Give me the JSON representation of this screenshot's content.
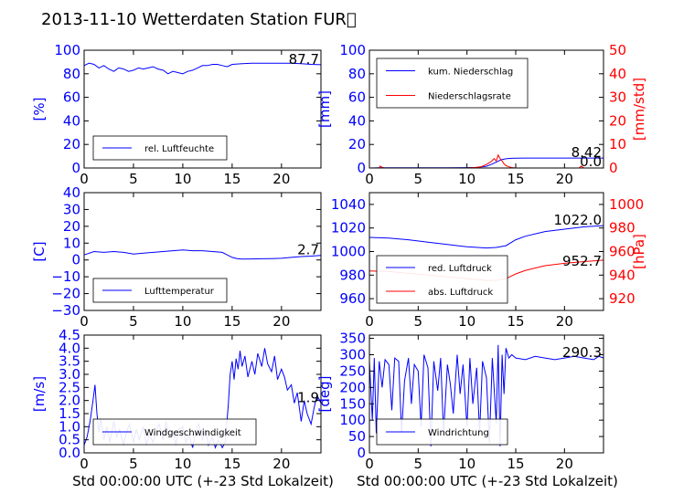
{
  "title": "2013-11-10 Wetterdaten Station FUR\u0000",
  "colors": {
    "primary": "#0000ff",
    "secondary": "#ff0000",
    "axis": "#000000"
  },
  "chart_data": [
    {
      "id": "humidity",
      "type": "line",
      "xlim": [
        0,
        24
      ],
      "xticks": [
        "0",
        "5",
        "10",
        "15",
        "20"
      ],
      "ylim": [
        0,
        100
      ],
      "yticks": [
        "0",
        "20",
        "40",
        "60",
        "80",
        "100"
      ],
      "ylabel": "[%]",
      "legend_position": "lower-left",
      "last_value_label": "87.7",
      "series": [
        {
          "name": "rel. Luftfeuchte",
          "color": "#0000ff",
          "x": [
            0,
            0.5,
            1,
            1.5,
            2,
            2.5,
            3,
            3.5,
            4,
            4.5,
            5,
            5.5,
            6,
            6.5,
            7,
            7.5,
            8,
            8.5,
            9,
            9.5,
            10,
            10.5,
            11,
            11.5,
            12,
            12.5,
            13,
            13.5,
            14,
            14.5,
            15,
            16,
            17,
            18,
            19,
            20,
            21,
            22,
            23,
            24
          ],
          "y": [
            87,
            89,
            88,
            85,
            87,
            84,
            82,
            85,
            84,
            82,
            83,
            85,
            84,
            85,
            86,
            84,
            83,
            80,
            82,
            81,
            80,
            82,
            83,
            85,
            87,
            87,
            88,
            88,
            87,
            86,
            88,
            88.5,
            89,
            89,
            89,
            89,
            89,
            88.5,
            88,
            87.7
          ]
        }
      ]
    },
    {
      "id": "precip",
      "type": "line",
      "xlim": [
        0,
        24
      ],
      "xticks": [
        "0",
        "5",
        "10",
        "15",
        "20"
      ],
      "ylim": [
        0,
        100
      ],
      "yticks": [
        "0",
        "20",
        "40",
        "60",
        "80",
        "100"
      ],
      "ylabel": "[mm]",
      "y2lim": [
        0,
        50
      ],
      "y2ticks": [
        "0",
        "10",
        "20",
        "30",
        "40",
        "50"
      ],
      "y2label": "[mm/std]",
      "legend_position": "upper-left",
      "last_value_label": "8.42",
      "last_value_label2": "0.0",
      "series": [
        {
          "name": "kum. Niederschlag",
          "color": "#0000ff",
          "axis": "left",
          "x": [
            0,
            1,
            2,
            4,
            6,
            8,
            10,
            11,
            12,
            12.5,
            13,
            13.5,
            14,
            14.5,
            15,
            16,
            18,
            20,
            22,
            24
          ],
          "y": [
            0,
            0.2,
            0.2,
            0.2,
            0.2,
            0.2,
            0.3,
            0.5,
            1.5,
            3,
            5,
            7,
            7.8,
            8.2,
            8.4,
            8.42,
            8.42,
            8.42,
            8.42,
            8.42
          ]
        },
        {
          "name": "Niederschlagsrate",
          "color": "#ff0000",
          "axis": "right",
          "x": [
            0,
            1,
            1.1,
            1.3,
            1.5,
            2,
            5,
            10,
            11,
            11.5,
            12,
            12.4,
            12.8,
            13,
            13.2,
            13.4,
            13.6,
            13.8,
            14,
            14.3,
            14.6,
            15,
            16,
            18,
            20,
            21.5,
            21.7,
            22,
            24
          ],
          "y": [
            0,
            0,
            0.8,
            0.3,
            0,
            0,
            0,
            0,
            0.3,
            0.6,
            1.5,
            2.5,
            4,
            3,
            5.5,
            4,
            3,
            1.8,
            1,
            0.5,
            0.2,
            0,
            0,
            0,
            0,
            0,
            0.8,
            0,
            0
          ]
        }
      ]
    },
    {
      "id": "temperature",
      "type": "line",
      "xlim": [
        0,
        24
      ],
      "xticks": [
        "0",
        "5",
        "10",
        "15",
        "20"
      ],
      "ylim": [
        -30,
        40
      ],
      "yticks": [
        "−30",
        "−20",
        "−10",
        "0",
        "10",
        "20",
        "30",
        "40"
      ],
      "ytick_values": [
        -30,
        -20,
        -10,
        0,
        10,
        20,
        30,
        40
      ],
      "ylabel": "[C]",
      "legend_position": "lower-left",
      "last_value_label": "2.7",
      "series": [
        {
          "name": "Lufttemperatur",
          "color": "#0000ff",
          "x": [
            0,
            1,
            2,
            3,
            4,
            5,
            6,
            7,
            8,
            9,
            10,
            11,
            12,
            13,
            14,
            14.5,
            15,
            15.5,
            16,
            17,
            18,
            19,
            20,
            21,
            22,
            23,
            24
          ],
          "y": [
            3,
            5,
            4.5,
            5,
            4.5,
            3.5,
            4,
            4.5,
            5,
            5.5,
            6,
            5.5,
            5.5,
            5,
            4.5,
            3,
            1.5,
            0.8,
            0.5,
            0.6,
            0.7,
            0.8,
            1,
            1.5,
            2,
            2.3,
            2.7
          ]
        }
      ]
    },
    {
      "id": "pressure",
      "type": "line",
      "xlim": [
        0,
        24
      ],
      "xticks": [
        "0",
        "5",
        "10",
        "15",
        "20"
      ],
      "ylim": [
        950,
        1050
      ],
      "yticks": [
        "960",
        "980",
        "1000",
        "1020",
        "1040"
      ],
      "ytick_values": [
        960,
        980,
        1000,
        1020,
        1040
      ],
      "y2lim": [
        910,
        1010
      ],
      "y2ticks": [
        "920",
        "940",
        "960",
        "980",
        "1000"
      ],
      "y2tick_values": [
        920,
        940,
        960,
        980,
        1000
      ],
      "y2label": "[hPa]",
      "legend_position": "lower-left",
      "last_value_label": "1022.0",
      "last_value_label2": "952.7",
      "series": [
        {
          "name": "red. Luftdruck",
          "color": "#0000ff",
          "axis": "left",
          "x": [
            0,
            2,
            4,
            6,
            8,
            10,
            12,
            13,
            14,
            15,
            16,
            18,
            20,
            22,
            24
          ],
          "y": [
            1012,
            1011.5,
            1010,
            1008,
            1006,
            1004,
            1003,
            1003.5,
            1005,
            1010,
            1013,
            1017,
            1019,
            1021,
            1022
          ]
        },
        {
          "name": "abs. Luftdruck",
          "color": "#ff0000",
          "axis": "right",
          "x": [
            0,
            2,
            4,
            6,
            8,
            10,
            12,
            13,
            14,
            15,
            16,
            18,
            20,
            22,
            24
          ],
          "y": [
            943.5,
            943,
            941.5,
            940,
            938.5,
            937,
            935.5,
            935.5,
            937,
            941,
            944,
            948,
            950,
            951.5,
            952.7
          ]
        }
      ]
    },
    {
      "id": "wind_speed",
      "type": "line",
      "xlim": [
        0,
        24
      ],
      "xticks": [
        "0",
        "5",
        "10",
        "15",
        "20"
      ],
      "ylim": [
        0,
        4.5
      ],
      "yticks": [
        "0.0",
        "0.5",
        "1.0",
        "1.5",
        "2.0",
        "2.5",
        "3.0",
        "3.5",
        "4.0",
        "4.5"
      ],
      "ylabel": "[m/s]",
      "legend_position": "lower-left",
      "last_value_label": "1.9",
      "series": [
        {
          "name": "Windgeschwindigkeit",
          "color": "#0000ff",
          "x": [
            0,
            0.3,
            0.6,
            0.9,
            1.1,
            1.3,
            1.5,
            1.7,
            2,
            2.3,
            2.6,
            3,
            3.3,
            3.6,
            4,
            4.3,
            4.6,
            5,
            5.3,
            5.6,
            6,
            6.3,
            6.6,
            7,
            7.3,
            7.6,
            8,
            8.3,
            8.6,
            9,
            9.3,
            9.6,
            10,
            10.3,
            10.6,
            11,
            11.3,
            11.6,
            12,
            12.3,
            12.6,
            13,
            13.3,
            13.6,
            14,
            14.3,
            14.6,
            14.8,
            15,
            15.2,
            15.4,
            15.6,
            15.8,
            16,
            16.3,
            16.6,
            17,
            17.3,
            17.6,
            18,
            18.3,
            18.6,
            19,
            19.3,
            19.6,
            20,
            20.3,
            20.6,
            21,
            21.3,
            21.6,
            22,
            22.3,
            22.6,
            23,
            23.3,
            23.6,
            24
          ],
          "y": [
            0.3,
            0.6,
            1.2,
            2.0,
            2.6,
            1.5,
            0.8,
            1.3,
            0.5,
            1.0,
            0.4,
            1.2,
            0.6,
            0.9,
            0.3,
            0.8,
            1.1,
            0.4,
            0.9,
            0.5,
            1.0,
            0.3,
            0.7,
            0.4,
            0.9,
            1.1,
            0.5,
            1.2,
            0.6,
            0.8,
            0.3,
            0.9,
            1.0,
            0.4,
            0.7,
            0.2,
            0.8,
            1.1,
            0.5,
            0.9,
            0.3,
            0.6,
            0.2,
            0.5,
            0.2,
            0.4,
            1.8,
            3.0,
            3.5,
            2.8,
            3.6,
            3.2,
            3.9,
            3.3,
            3.7,
            2.9,
            3.5,
            3.0,
            3.8,
            3.3,
            4.0,
            3.4,
            3.1,
            3.7,
            2.8,
            3.2,
            2.9,
            2.4,
            2.6,
            1.9,
            2.3,
            1.2,
            2.0,
            1.5,
            1.1,
            1.7,
            2.2,
            1.9
          ]
        }
      ]
    },
    {
      "id": "wind_dir",
      "type": "line",
      "xlim": [
        0,
        24
      ],
      "xticks": [
        "0",
        "5",
        "10",
        "15",
        "20"
      ],
      "ylim": [
        0,
        360
      ],
      "yticks": [
        "0",
        "50",
        "100",
        "150",
        "200",
        "250",
        "300",
        "350"
      ],
      "ylabel": "[deg]",
      "legend_position": "lower-left",
      "last_value_label": "290.3",
      "series": [
        {
          "name": "Windrichtung",
          "color": "#0000ff",
          "x": [
            0,
            0.3,
            0.5,
            0.7,
            1,
            1.3,
            1.6,
            2,
            2.3,
            2.6,
            3,
            3.3,
            3.6,
            4,
            4.3,
            4.6,
            5,
            5.3,
            5.6,
            6,
            6.3,
            6.6,
            7,
            7.3,
            7.6,
            8,
            8.3,
            8.6,
            9,
            9.3,
            9.6,
            10,
            10.3,
            10.6,
            11,
            11.3,
            11.6,
            12,
            12.3,
            12.6,
            13,
            13.2,
            13.4,
            13.6,
            13.8,
            14,
            14.3,
            14.6,
            15,
            16,
            17,
            18,
            19,
            20,
            21,
            22,
            23,
            23.5,
            24
          ],
          "y": [
            280,
            100,
            290,
            60,
            280,
            200,
            285,
            270,
            130,
            290,
            280,
            60,
            220,
            290,
            150,
            270,
            250,
            80,
            300,
            260,
            20,
            280,
            190,
            290,
            60,
            270,
            210,
            120,
            300,
            180,
            270,
            80,
            290,
            150,
            260,
            60,
            280,
            230,
            30,
            290,
            90,
            330,
            20,
            300,
            180,
            320,
            290,
            300,
            290,
            285,
            295,
            290,
            285,
            290,
            295,
            290,
            285,
            295,
            290.3
          ]
        }
      ]
    }
  ],
  "xlabel_left": "Std 00:00:00 UTC (+-23 Std Lokalzeit)",
  "xlabel_right": "Std 00:00:00 UTC (+-23 Std Lokalzeit)"
}
